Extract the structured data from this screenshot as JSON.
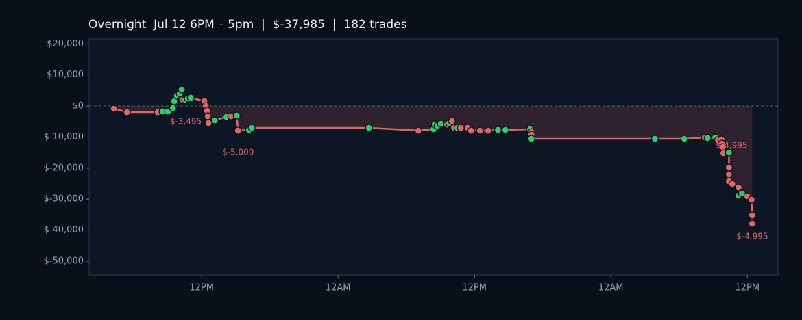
{
  "chart_data": {
    "type": "line",
    "title": "Overnight  Jul 12 6PM – 5pm  |  $-37,985  |  182 trades",
    "xlim": [
      2.1,
      62.7
    ],
    "xticks": [
      {
        "value": 12,
        "label": "12PM"
      },
      {
        "value": 24,
        "label": "12AM"
      },
      {
        "value": 36,
        "label": "12PM"
      },
      {
        "value": 48,
        "label": "12AM"
      },
      {
        "value": 60,
        "label": "12PM"
      }
    ],
    "ylim": [
      -54400,
      21600
    ],
    "yticks": [
      {
        "value": 20000,
        "label": "$20,000"
      },
      {
        "value": 10000,
        "label": "$10,000"
      },
      {
        "value": 0,
        "label": "$0"
      },
      {
        "value": -10000,
        "label": "$-10,000"
      },
      {
        "value": -20000,
        "label": "$-20,000"
      },
      {
        "value": -30000,
        "label": "$-30,000"
      },
      {
        "value": -40000,
        "label": "$-40,000"
      },
      {
        "value": -50000,
        "label": "$-50,000"
      }
    ],
    "zero_line": true,
    "line_color": "#e06666",
    "fill_color": "rgba(224,102,102,0.16)",
    "win_color": "#2ecc71",
    "loss_color": "#e06666",
    "x": [
      4.28,
      5.43,
      8.14,
      8.56,
      9.04,
      9.47,
      9.59,
      9.83,
      10.07,
      10.25,
      10.31,
      10.55,
      10.79,
      11.04,
      12.24,
      12.36,
      12.48,
      12.54,
      12.6,
      13.15,
      14.17,
      14.59,
      15.08,
      15.2,
      16.16,
      16.4,
      26.72,
      31.06,
      32.39,
      32.5,
      32.75,
      33.05,
      33.59,
      33.77,
      34.01,
      34.2,
      34.5,
      34.8,
      35.4,
      35.7,
      36.49,
      37.21,
      38.06,
      38.72,
      40.89,
      41.01,
      41.01,
      41.01,
      51.87,
      54.46,
      56.27,
      56.51,
      57.18,
      57.42,
      57.72,
      57.78,
      57.84,
      57.9,
      58.38,
      58.38,
      58.38,
      58.38,
      58.68,
      59.23,
      59.23,
      59.53,
      60.0,
      60.37,
      60.43,
      60.43
    ],
    "values": [
      -880,
      -1980,
      -1980,
      -1760,
      -1760,
      -660,
      1540,
      3300,
      3960,
      5290,
      1980,
      1980,
      2420,
      2640,
      1540,
      0,
      -1540,
      -3300,
      -5510,
      -4630,
      -3520,
      -3300,
      -3080,
      -7930,
      -7710,
      -7050,
      -7050,
      -7930,
      -7490,
      -5950,
      -6390,
      -5730,
      -5950,
      -5510,
      -4850,
      -7050,
      -7050,
      -7050,
      -7050,
      -7930,
      -7930,
      -7930,
      -7710,
      -7710,
      -7490,
      -8370,
      -9250,
      -10570,
      -10570,
      -10570,
      -10130,
      -10350,
      -10130,
      -11010,
      -10790,
      -12110,
      -13220,
      -15200,
      -14980,
      -19820,
      -22030,
      -24230,
      -25110,
      -26210,
      -28850,
      -28190,
      -29070,
      -30180,
      -35240,
      -37880
    ],
    "outcomes": [
      "loss",
      "loss",
      "loss",
      "win",
      "win",
      "win",
      "win",
      "win",
      "win",
      "win",
      "loss",
      "win",
      "win",
      "win",
      "loss",
      "loss",
      "loss",
      "loss",
      "loss",
      "win",
      "win",
      "loss",
      "win",
      "loss",
      "win",
      "win",
      "win",
      "loss",
      "win",
      "win",
      "win",
      "win",
      "loss",
      "win",
      "loss",
      "loss",
      "win",
      "loss",
      "loss",
      "loss",
      "loss",
      "loss",
      "win",
      "win",
      "win",
      "loss",
      "loss",
      "win",
      "win",
      "win",
      "loss",
      "win",
      "win",
      "loss",
      "loss",
      "loss",
      "loss",
      "loss",
      "win",
      "loss",
      "loss",
      "loss",
      "loss",
      "loss",
      "win",
      "win",
      "loss",
      "loss",
      "loss",
      "loss"
    ],
    "annotations": [
      {
        "text": "$-3,495",
        "x": 12.6,
        "y": -5510
      },
      {
        "text": "$-5,000",
        "x": 15.2,
        "y": -7930
      },
      {
        "text": "$-4,995",
        "x": 57.9,
        "y": -15200
      },
      {
        "text": "$-4,995",
        "x": 60.43,
        "y": -37880
      }
    ]
  }
}
